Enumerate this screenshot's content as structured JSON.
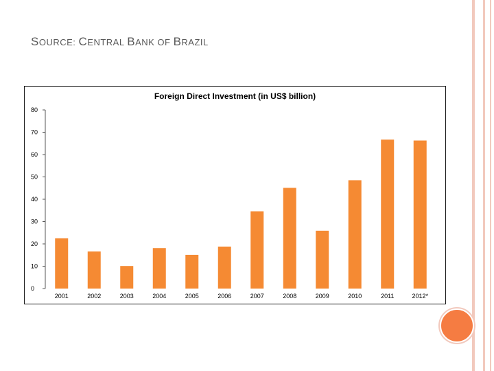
{
  "slide": {
    "source_prefix": "S",
    "source_part1": "OURCE: ",
    "source_c": "C",
    "source_part2": "ENTRAL ",
    "source_b": "B",
    "source_part3": "ANK OF ",
    "source_b2": "B",
    "source_part4": "RAZIL"
  },
  "colors": {
    "bar": "#f58a33",
    "accent": "#f57c42",
    "rail": "#f2c9bd"
  },
  "chart_data": {
    "type": "bar",
    "title": "Foreign Direct Investment (in US$ billion)",
    "categories": [
      "2001",
      "2002",
      "2003",
      "2004",
      "2005",
      "2006",
      "2007",
      "2008",
      "2009",
      "2010",
      "2011",
      "2012*"
    ],
    "values": [
      22.5,
      16.6,
      10.1,
      18.1,
      15.1,
      18.8,
      34.6,
      45.1,
      25.9,
      48.5,
      66.7,
      66.3
    ],
    "yticks": [
      "0",
      "10",
      "20",
      "30",
      "40",
      "50",
      "60",
      "70",
      "80"
    ],
    "ylim": [
      0,
      80
    ],
    "xlabel": "",
    "ylabel": "",
    "grid": false,
    "legend": "none"
  }
}
